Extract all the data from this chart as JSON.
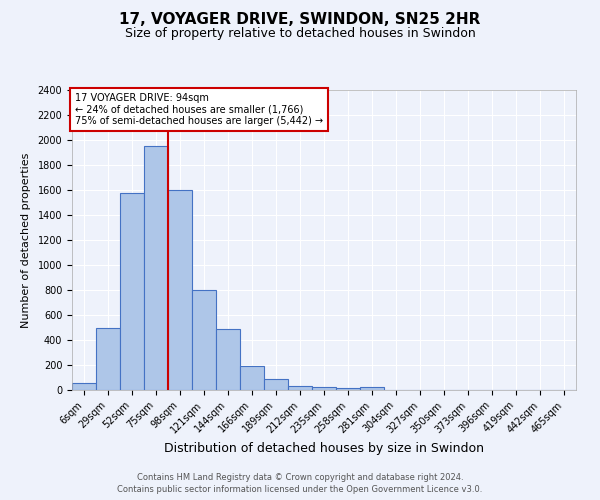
{
  "title1": "17, VOYAGER DRIVE, SWINDON, SN25 2HR",
  "title2": "Size of property relative to detached houses in Swindon",
  "xlabel": "Distribution of detached houses by size in Swindon",
  "ylabel": "Number of detached properties",
  "footer1": "Contains HM Land Registry data © Crown copyright and database right 2024.",
  "footer2": "Contains public sector information licensed under the Open Government Licence v3.0.",
  "categories": [
    "6sqm",
    "29sqm",
    "52sqm",
    "75sqm",
    "98sqm",
    "121sqm",
    "144sqm",
    "166sqm",
    "189sqm",
    "212sqm",
    "235sqm",
    "258sqm",
    "281sqm",
    "304sqm",
    "327sqm",
    "350sqm",
    "373sqm",
    "396sqm",
    "419sqm",
    "442sqm",
    "465sqm"
  ],
  "values": [
    60,
    500,
    1580,
    1950,
    1600,
    800,
    490,
    190,
    90,
    35,
    25,
    15,
    25,
    0,
    0,
    0,
    0,
    0,
    0,
    0,
    0
  ],
  "bar_color": "#aec6e8",
  "bar_edge_color": "#4472c4",
  "vline_color": "#cc0000",
  "vline_x": 3.5,
  "annotation_title": "17 VOYAGER DRIVE: 94sqm",
  "annotation_line1": "← 24% of detached houses are smaller (1,766)",
  "annotation_line2": "75% of semi-detached houses are larger (5,442) →",
  "annotation_box_color": "#ffffff",
  "annotation_box_edge": "#cc0000",
  "ylim": [
    0,
    2400
  ],
  "yticks": [
    0,
    200,
    400,
    600,
    800,
    1000,
    1200,
    1400,
    1600,
    1800,
    2000,
    2200,
    2400
  ],
  "bg_color": "#eef2fb",
  "plot_bg_color": "#eef2fb",
  "grid_color": "#ffffff",
  "title1_fontsize": 11,
  "title2_fontsize": 9,
  "xlabel_fontsize": 9,
  "ylabel_fontsize": 8,
  "tick_fontsize": 7,
  "footer_fontsize": 6
}
